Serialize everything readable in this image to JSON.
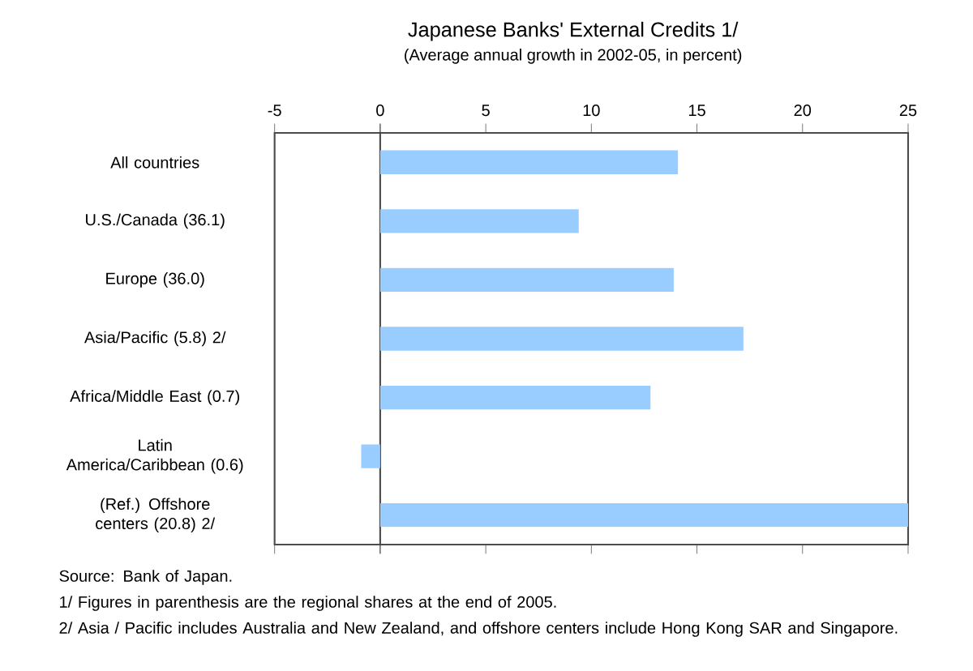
{
  "chart_data": {
    "type": "bar",
    "orientation": "horizontal",
    "title": "Japanese Banks' External Credits 1/",
    "subtitle": "(Average annual growth in 2002-05, in percent)",
    "categories": [
      "All countries",
      "U.S./Canada (36.1)",
      "Europe (36.0)",
      "Asia/Pacific (5.8) 2/",
      "Africa/Middle East (0.7)",
      "Latin America/Caribbean (0.6)",
      "(Ref.) Offshore centers (20.8) 2/"
    ],
    "values": [
      14.1,
      9.4,
      13.9,
      17.2,
      12.8,
      -0.9,
      25
    ],
    "color": "#99ccff",
    "xlim": [
      -5,
      25
    ],
    "xticks": [
      -5,
      0,
      5,
      10,
      15,
      20,
      25
    ],
    "annotations": [
      "Source: Bank of Japan.",
      "1/ Figures in parenthesis are the regional shares at the end of 2005.",
      "2/ Asia / Pacific includes Australia and New Zealand, and offshore centers include Hong Kong SAR and Singapore."
    ]
  }
}
